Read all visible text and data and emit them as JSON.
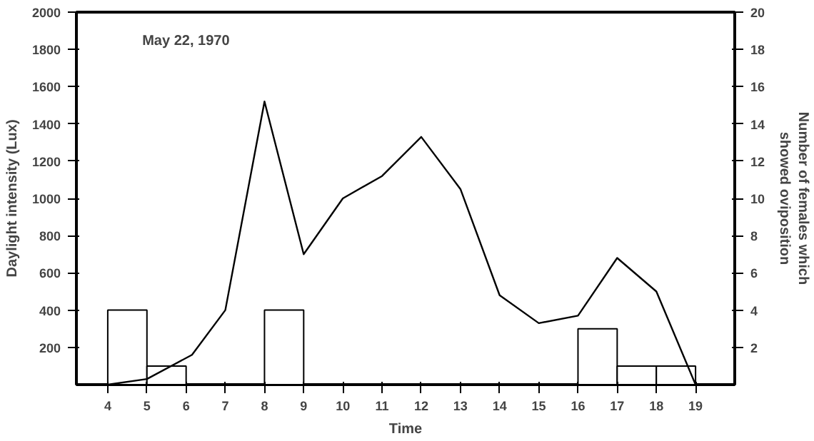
{
  "chart_data": {
    "type": "line",
    "xlabel": "Time",
    "ylabel": "Daylight intensity (Lux)",
    "y2label": "Number of females which\nshowed oviposition",
    "annotations": [
      "May 22, 1970"
    ],
    "xlim": [
      3.2,
      20
    ],
    "xticks": [
      4,
      5,
      6,
      7,
      8,
      9,
      10,
      11,
      12,
      13,
      14,
      15,
      16,
      17,
      18,
      19
    ],
    "ylim": [
      0,
      2000
    ],
    "yticks": [
      200,
      400,
      600,
      800,
      1000,
      1200,
      1400,
      1600,
      1800,
      2000
    ],
    "y2lim": [
      0,
      20
    ],
    "y2ticks": [
      2,
      4,
      6,
      8,
      10,
      12,
      14,
      16,
      18,
      20
    ],
    "grid": false,
    "series": [
      {
        "type": "bar",
        "axis": "y2",
        "color": "#ffffff",
        "x": [
          4.5,
          5.5,
          8.5,
          16.5,
          17.5,
          18.5
        ],
        "values": [
          4,
          1,
          4,
          3,
          1,
          1
        ]
      },
      {
        "color": "#000000",
        "x": [
          4,
          5,
          6.15,
          7,
          8,
          9,
          10,
          11,
          12,
          13,
          14,
          15,
          16,
          17,
          18,
          19
        ],
        "values": [
          0,
          30,
          160,
          400,
          1520,
          700,
          1000,
          1120,
          1330,
          1050,
          480,
          330,
          370,
          680,
          500,
          0
        ]
      }
    ]
  }
}
